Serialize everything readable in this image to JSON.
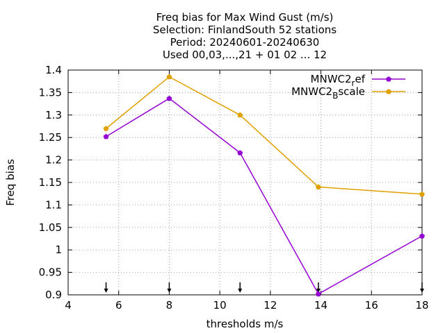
{
  "chart_data": {
    "type": "line",
    "title_lines": [
      "Freq bias  for Max Wind Gust (m/s)",
      "Selection: FinlandSouth      52 stations",
      "Period: 20240601-20240630",
      "Used 00,03,...,21 + 01 02 ... 12"
    ],
    "xlabel": "thresholds m/s",
    "ylabel": "Freq bias",
    "xlim": [
      4,
      18
    ],
    "ylim": [
      0.9,
      1.4
    ],
    "xticks": [
      4,
      6,
      8,
      10,
      12,
      14,
      16,
      18
    ],
    "yticks": [
      0.9,
      0.95,
      1,
      1.05,
      1.1,
      1.15,
      1.2,
      1.25,
      1.3,
      1.35,
      1.4
    ],
    "ytick_labels": [
      "0.9",
      "0.95",
      "1",
      "1.05",
      "1.1",
      "1.15",
      "1.2",
      "1.25",
      "1.3",
      "1.35",
      "1.4"
    ],
    "grid": true,
    "legend_position": "top-right",
    "arrow_markers_x": [
      5.5,
      8,
      10.8,
      13.9,
      18
    ],
    "x": [
      5.5,
      8,
      10.8,
      13.9,
      18
    ],
    "series": [
      {
        "name": "MNWC2_ref",
        "legend_base": "MNWC2",
        "legend_sub": "r",
        "legend_rest": "ef",
        "color": "#9400d3",
        "values": [
          1.252,
          1.337,
          1.216,
          0.902,
          1.031
        ]
      },
      {
        "name": "MNWC2_Bscale",
        "legend_base": "MNWC2",
        "legend_sub": "B",
        "legend_rest": "scale",
        "color": "#e0a000",
        "values": [
          1.27,
          1.385,
          1.3,
          1.14,
          1.124
        ]
      }
    ]
  }
}
